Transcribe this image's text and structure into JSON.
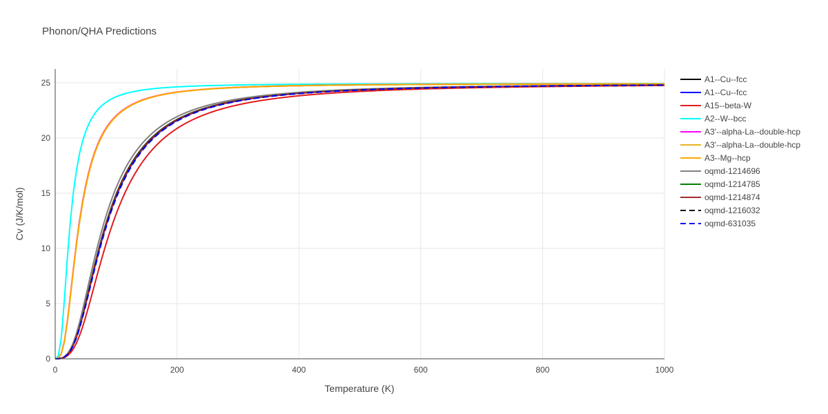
{
  "chart_data": {
    "type": "line",
    "title": "Phonon/QHA Predictions",
    "xlabel": "Temperature (K)",
    "ylabel": "Cv (J/K/mol)",
    "xlim": [
      0,
      1000
    ],
    "ylim": [
      0,
      26.25
    ],
    "xticks": [
      0,
      200,
      400,
      600,
      800,
      1000
    ],
    "yticks": [
      0,
      5,
      10,
      15,
      20,
      25
    ],
    "grid": true,
    "legend_position": "right",
    "series": [
      {
        "name": "A1--Cu--fcc",
        "color": "#000000",
        "dash": "solid",
        "debye": 340,
        "cmax": 24.94
      },
      {
        "name": "A1--Cu--fcc",
        "color": "#0000ff",
        "dash": "solid",
        "debye": 345,
        "cmax": 24.94
      },
      {
        "name": "A15--beta-W",
        "color": "#e31a1c",
        "dash": "solid",
        "debye": 385,
        "cmax": 24.94
      },
      {
        "name": "A2--W--bcc",
        "color": "#00ffff",
        "dash": "solid",
        "debye": 100,
        "cmax": 24.94
      },
      {
        "name": "A3'--alpha-La--double-hcp",
        "color": "#ff00ff",
        "dash": "solid",
        "debye": 160,
        "cmax": 24.94
      },
      {
        "name": "A3'--alpha-La--double-hcp",
        "color": "#e6b422",
        "dash": "solid",
        "debye": 162,
        "cmax": 24.94
      },
      {
        "name": "A3--Mg--hcp",
        "color": "#ffa500",
        "dash": "solid",
        "debye": 161,
        "cmax": 24.94
      },
      {
        "name": "oqmd-1214696",
        "color": "#808080",
        "dash": "solid",
        "debye": 325,
        "cmax": 24.94
      },
      {
        "name": "oqmd-1214785",
        "color": "#008000",
        "dash": "solid",
        "debye": 342,
        "cmax": 24.94
      },
      {
        "name": "oqmd-1214874",
        "color": "#a52a2a",
        "dash": "solid",
        "debye": 343,
        "cmax": 24.94
      },
      {
        "name": "oqmd-1216032",
        "color": "#000000",
        "dash": "dash",
        "debye": 347,
        "cmax": 24.94
      },
      {
        "name": "oqmd-631035",
        "color": "#0000ff",
        "dash": "dash",
        "debye": 348,
        "cmax": 24.94
      }
    ]
  }
}
